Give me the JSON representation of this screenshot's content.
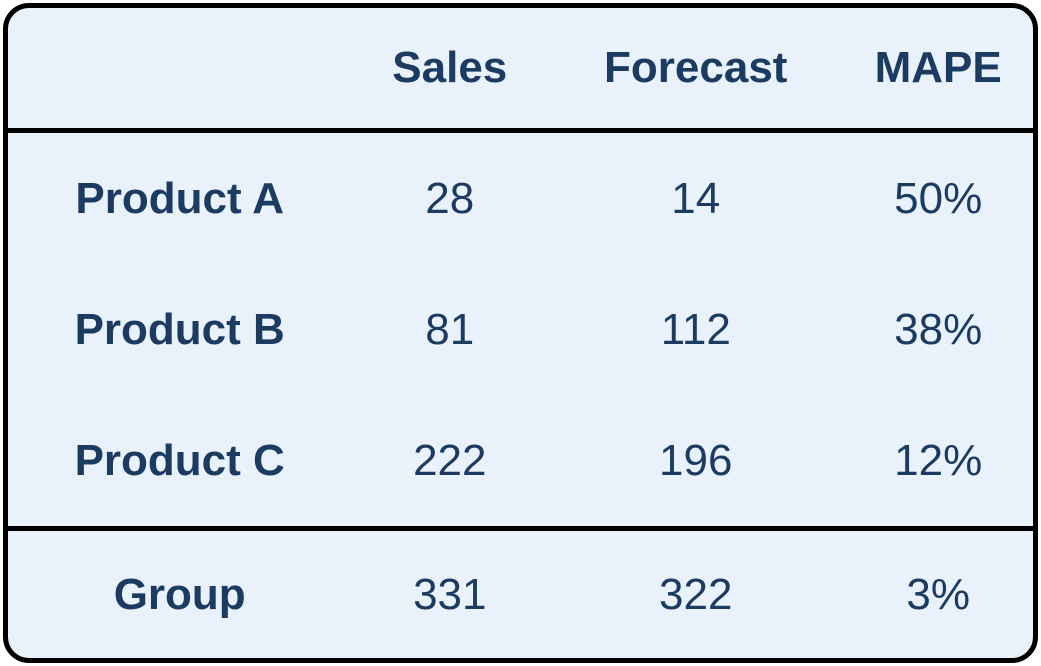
{
  "colors": {
    "card_background": "#e9f1fb",
    "text": "#1c3b60",
    "rule": "#000000",
    "page_background": "#ffffff"
  },
  "table": {
    "header": {
      "label": "",
      "sales": "Sales",
      "forecast": "Forecast",
      "mape": "MAPE"
    },
    "rows": [
      {
        "label": "Product A",
        "sales": "28",
        "forecast": "14",
        "mape": "50%"
      },
      {
        "label": "Product B",
        "sales": "81",
        "forecast": "112",
        "mape": "38%"
      },
      {
        "label": "Product C",
        "sales": "222",
        "forecast": "196",
        "mape": "12%"
      }
    ],
    "total": {
      "label": "Group",
      "sales": "331",
      "forecast": "322",
      "mape": "3%"
    }
  },
  "chart_data": {
    "type": "table",
    "columns": [
      "",
      "Sales",
      "Forecast",
      "MAPE"
    ],
    "rows": [
      [
        "Product A",
        28,
        14,
        "50%"
      ],
      [
        "Product B",
        81,
        112,
        "38%"
      ],
      [
        "Product C",
        222,
        196,
        "12%"
      ],
      [
        "Group",
        331,
        322,
        "3%"
      ]
    ],
    "notes": "Group row is a summary/total row separated by a horizontal rule"
  }
}
